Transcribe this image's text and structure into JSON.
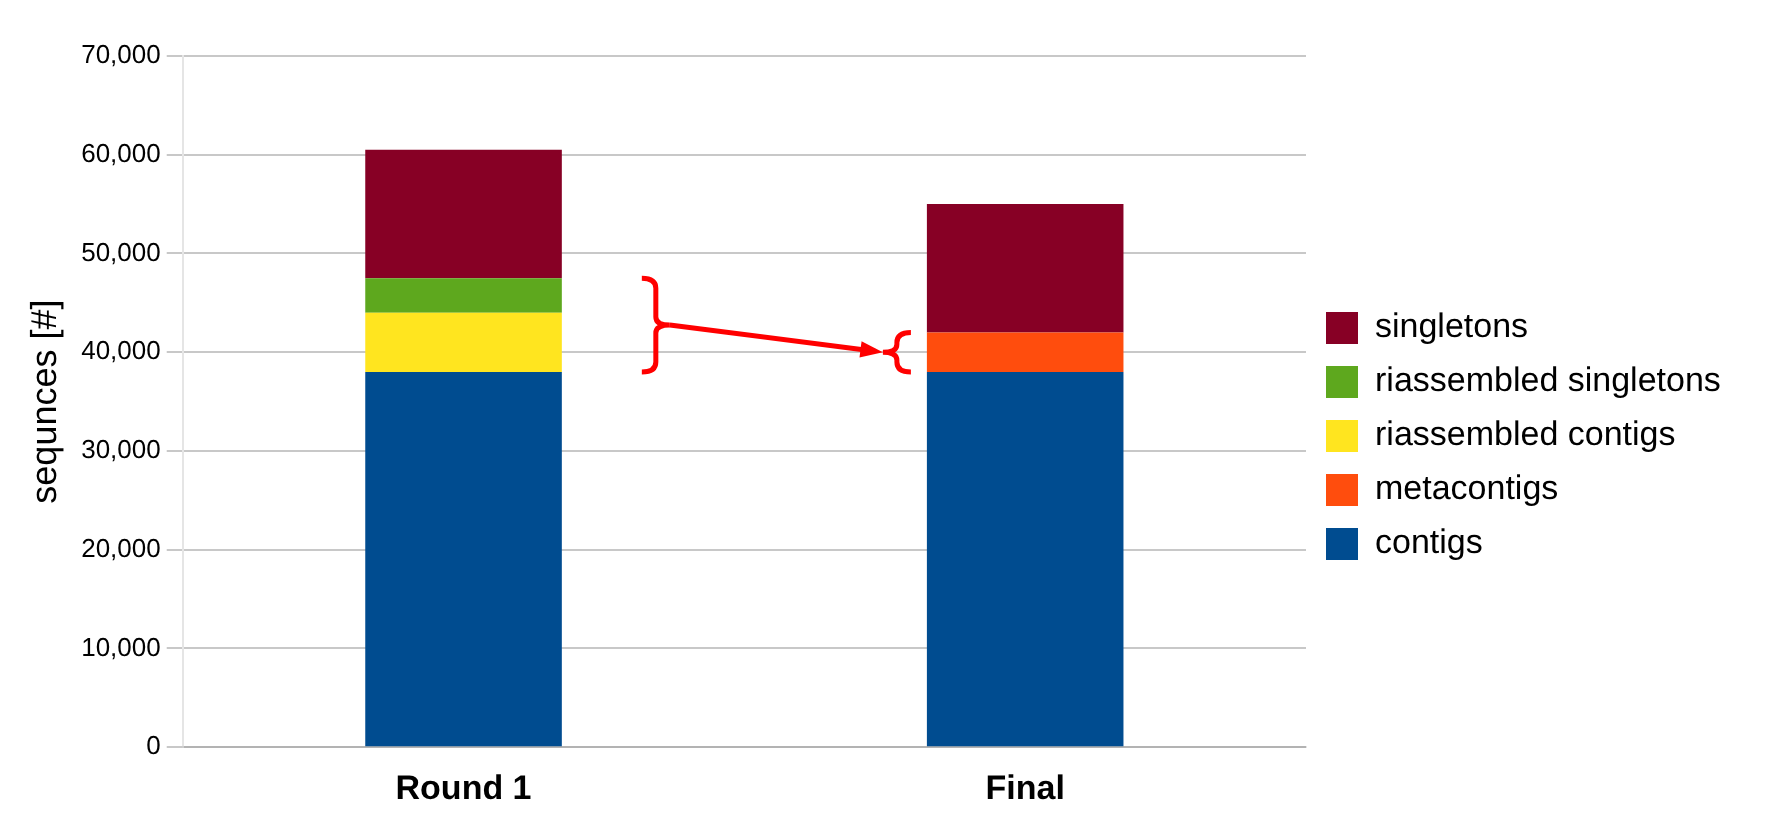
{
  "chart_data": {
    "type": "bar",
    "stacked": true,
    "ylabel": "sequnces [#]",
    "categories": [
      "Round 1",
      "Final"
    ],
    "series": [
      {
        "name": "contigs",
        "color": "#004c90",
        "values": [
          38000,
          38000
        ]
      },
      {
        "name": "metacontigs",
        "color": "#ff4d0d",
        "values": [
          null,
          4000
        ]
      },
      {
        "name": "riassembled contigs",
        "color": "#ffe51f",
        "values": [
          6000,
          null
        ]
      },
      {
        "name": "riassembled singletons",
        "color": "#5ea81e",
        "values": [
          3500,
          null
        ]
      },
      {
        "name": "singletons",
        "color": "#870025",
        "values": [
          13000,
          13000
        ]
      }
    ],
    "ylim": [
      0,
      70000
    ],
    "yticks": [
      {
        "value": 0,
        "label": "0"
      },
      {
        "value": 10000,
        "label": "10,000"
      },
      {
        "value": 20000,
        "label": "20,000"
      },
      {
        "value": 30000,
        "label": "30,000"
      },
      {
        "value": 40000,
        "label": "40,000"
      },
      {
        "value": 50000,
        "label": "50,000"
      },
      {
        "value": 60000,
        "label": "60,000"
      },
      {
        "value": 70000,
        "label": "70,000"
      }
    ],
    "grid": "y",
    "legend": "right"
  }
}
